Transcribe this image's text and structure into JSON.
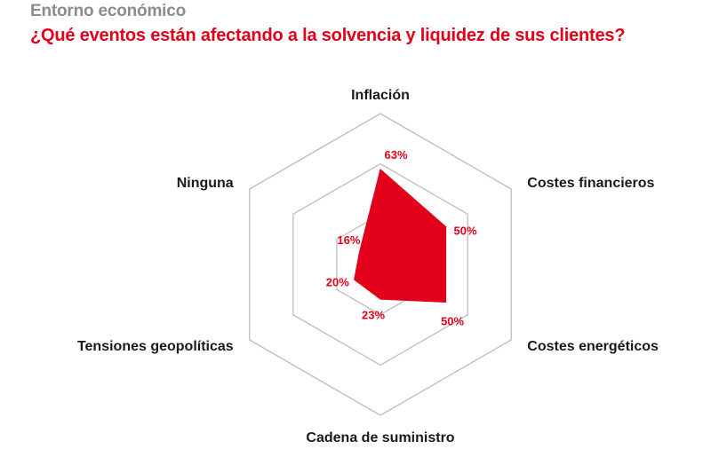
{
  "header": {
    "section": "Entorno económico",
    "question": "¿Qué eventos están afectando a la solvencia y liquidez de sus clientes?"
  },
  "chart_data": {
    "type": "radar",
    "axes": [
      "Inflación",
      "Costes financieros",
      "Costes energéticos",
      "Cadena de suministro",
      "Tensiones geopolíticas",
      "Ninguna"
    ],
    "values": [
      63,
      50,
      50,
      23,
      20,
      16
    ],
    "value_labels": [
      "63%",
      "50%",
      "50%",
      "23%",
      "20%",
      "16%"
    ],
    "rmax": 100,
    "grid_levels": [
      33.3,
      66.7,
      100
    ],
    "grid": true,
    "legend": "none",
    "colors": {
      "fill": "#e2001a",
      "grid": "#bdbdbd",
      "label": "#1a1a1a",
      "value": "#e2001a"
    }
  }
}
